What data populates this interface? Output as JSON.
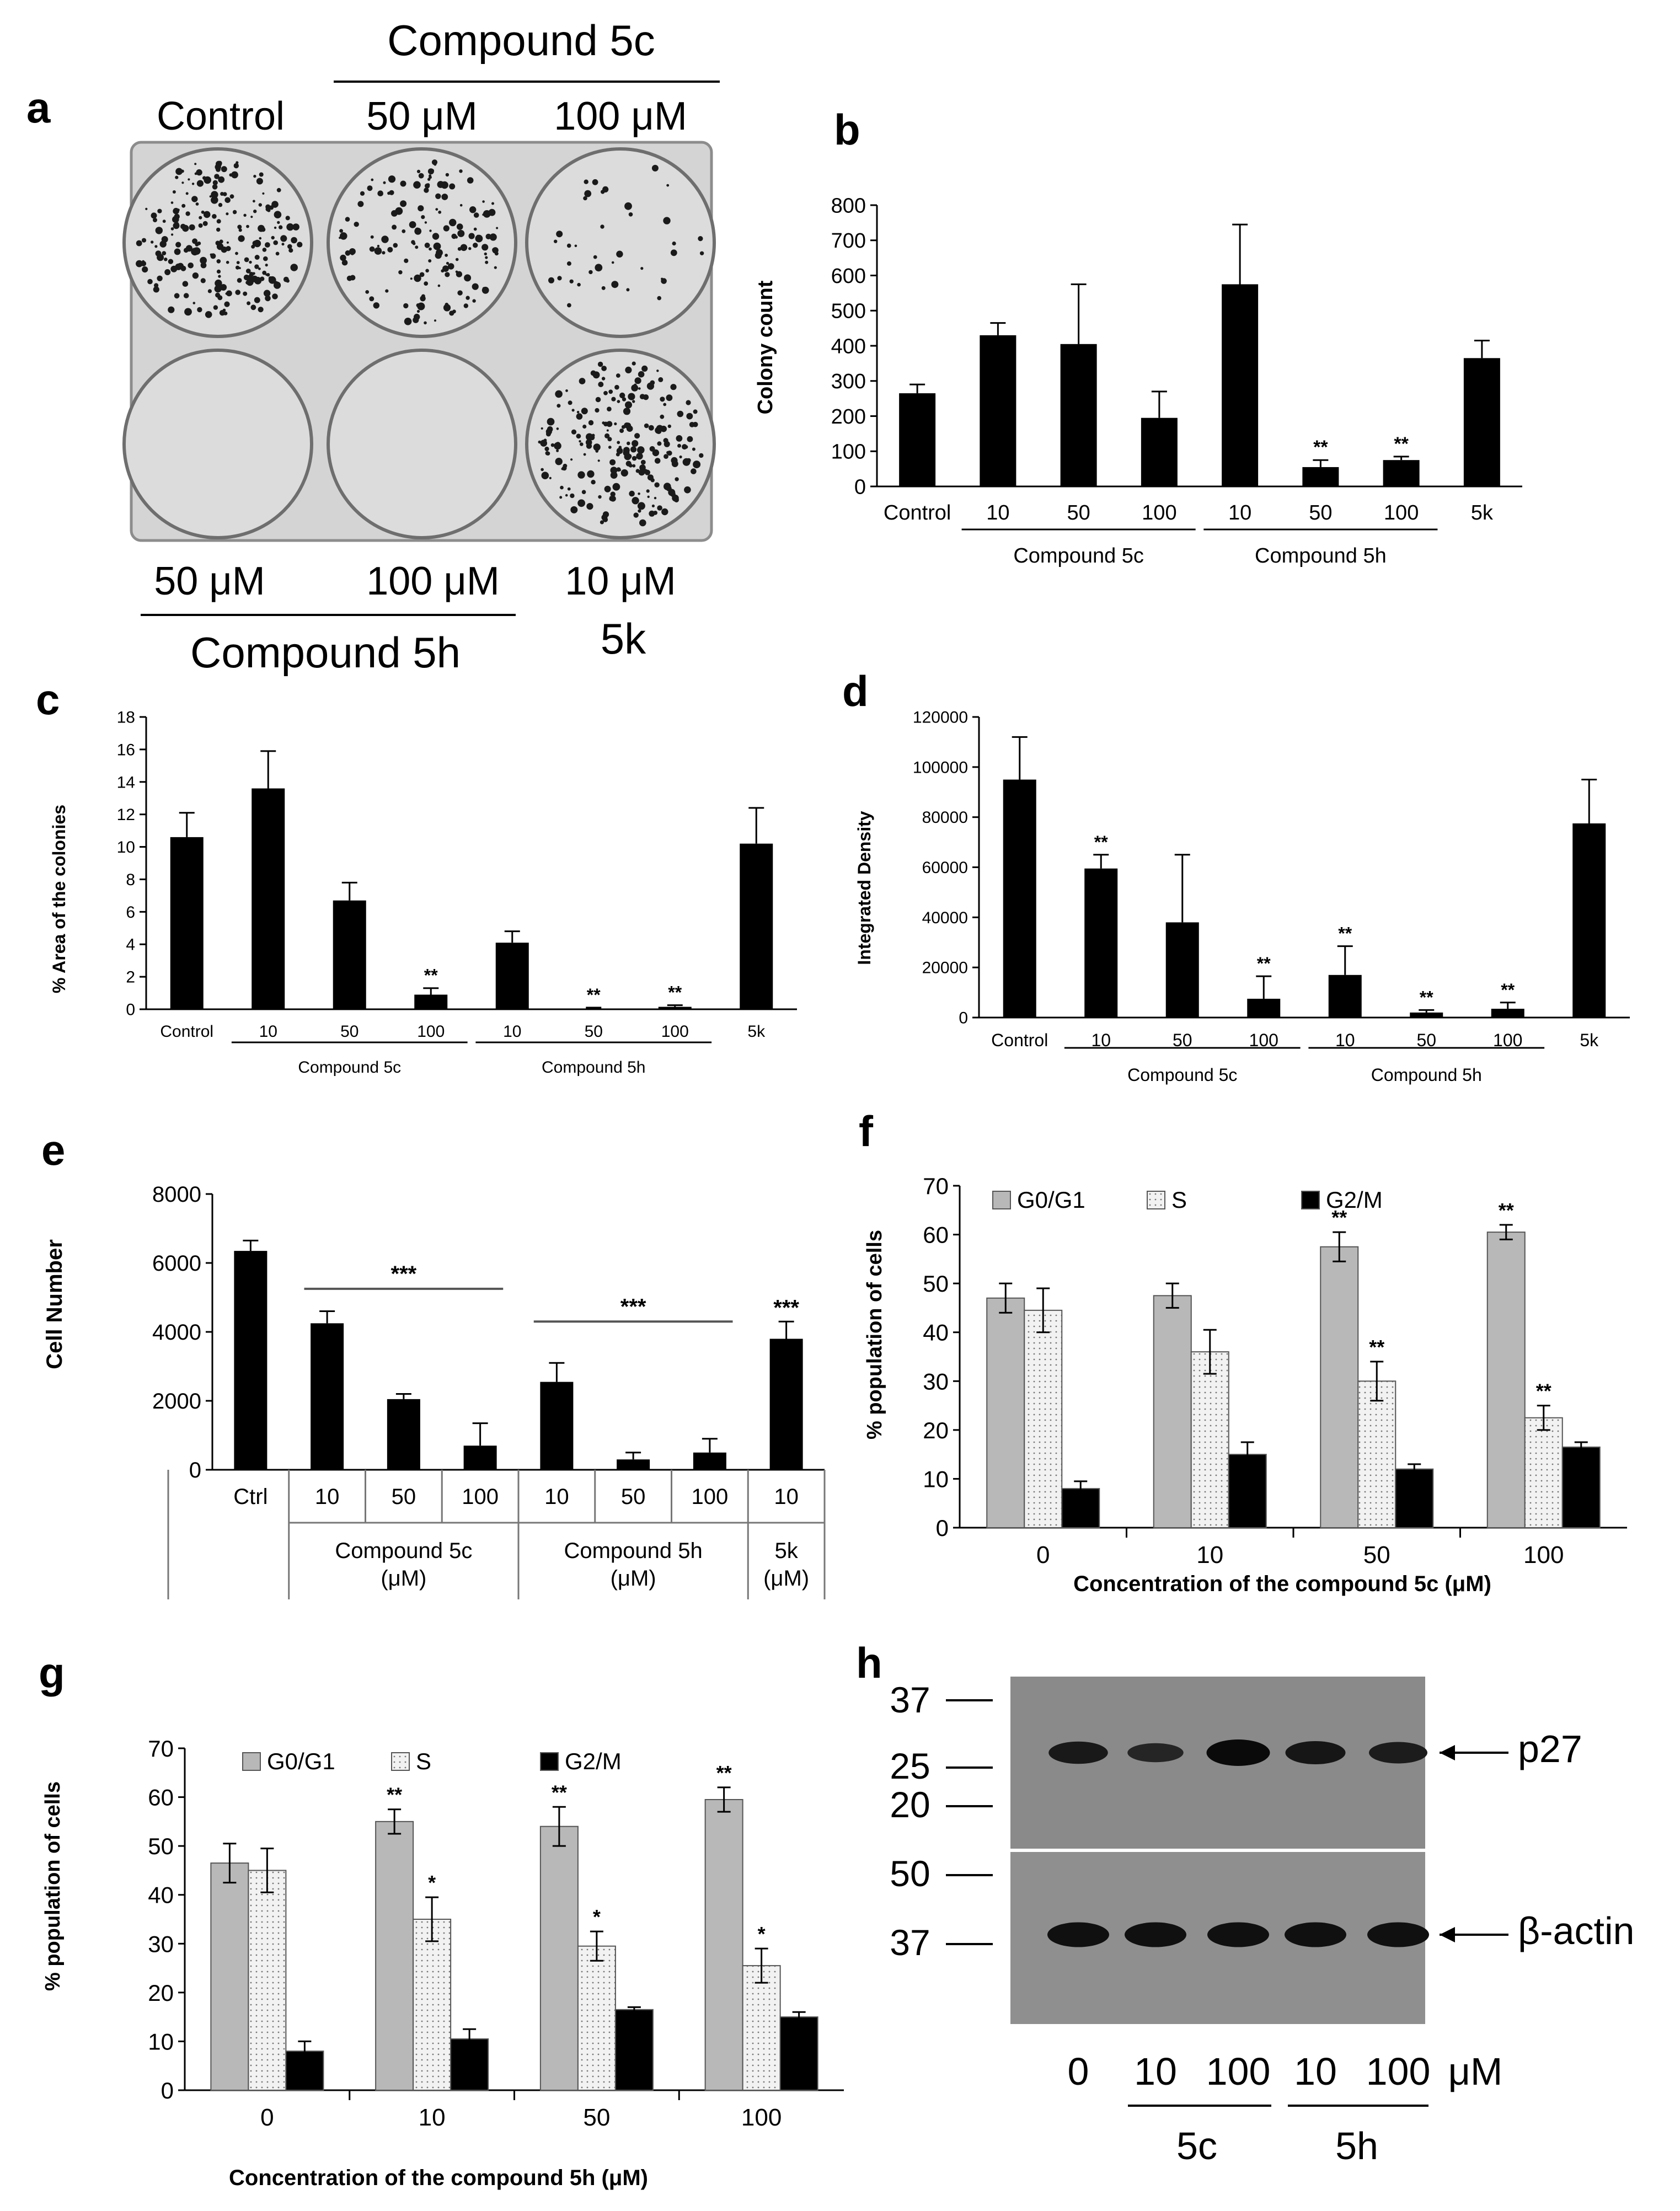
{
  "figure": {
    "panel_letters": {
      "a": "a",
      "b": "b",
      "c": "c",
      "d": "d",
      "e": "e",
      "f": "f",
      "g": "g",
      "h": "h"
    },
    "colors": {
      "black": "#000000",
      "gray": "#b8b8b8",
      "dotted": "#f2f2f2",
      "plate": "#c9c9c9",
      "blot": "#8a8a8a"
    }
  },
  "plate": {
    "header_compound": "Compound 5c",
    "labels_top": [
      "Control",
      "50 μM",
      "100 μM"
    ],
    "labels_bottom": [
      "50 μM",
      "100 μM",
      "10 μM"
    ],
    "footer_compound": "Compound 5h",
    "footer_5k": "5k",
    "colony_density": [
      0.9,
      0.6,
      0.15,
      0.0,
      0.0,
      0.85
    ]
  },
  "chart_data": [
    {
      "id": "b",
      "type": "bar",
      "categories": [
        "Control",
        "10",
        "50",
        "100",
        "10",
        "50",
        "100",
        "5k"
      ],
      "values": [
        265,
        430,
        405,
        195,
        575,
        55,
        75,
        365
      ],
      "errors": [
        25,
        35,
        170,
        75,
        170,
        20,
        10,
        50
      ],
      "significance": [
        "",
        "",
        "",
        "",
        "",
        "**",
        "**",
        ""
      ],
      "ylabel": "Colony count",
      "ylim": [
        0,
        800
      ],
      "yticks": [
        0,
        100,
        200,
        300,
        400,
        500,
        600,
        700,
        800
      ],
      "groups": [
        {
          "label": "Compound  5c",
          "start": 1,
          "end": 3
        },
        {
          "label": "Compound  5h",
          "start": 4,
          "end": 6
        }
      ]
    },
    {
      "id": "c",
      "type": "bar",
      "categories": [
        "Control",
        "10",
        "50",
        "100",
        "10",
        "50",
        "100",
        "5k"
      ],
      "values": [
        10.6,
        13.6,
        6.7,
        0.9,
        4.1,
        0.05,
        0.15,
        10.2
      ],
      "errors": [
        1.5,
        2.3,
        1.1,
        0.4,
        0.7,
        0.05,
        0.1,
        2.2
      ],
      "significance": [
        "",
        "",
        "",
        "**",
        "",
        "**",
        "**",
        ""
      ],
      "ylabel": "% Area of the colonies",
      "ylim": [
        0,
        18
      ],
      "yticks": [
        0,
        2,
        4,
        6,
        8,
        10,
        12,
        14,
        16,
        18
      ],
      "groups": [
        {
          "label": "Compound  5c",
          "start": 1,
          "end": 3
        },
        {
          "label": "Compound  5h",
          "start": 4,
          "end": 6
        }
      ]
    },
    {
      "id": "d",
      "type": "bar",
      "categories": [
        "Control",
        "10",
        "50",
        "100",
        "10",
        "50",
        "100",
        "5k"
      ],
      "values": [
        95000,
        59500,
        38000,
        7500,
        17000,
        2000,
        3500,
        77500
      ],
      "errors": [
        17000,
        5500,
        27000,
        9000,
        11500,
        1000,
        2500,
        17500
      ],
      "significance": [
        "",
        "**",
        "",
        "**",
        "**",
        "**",
        "**",
        ""
      ],
      "ylabel": "Integrated Density",
      "ylim": [
        0,
        120000
      ],
      "yticks": [
        0,
        20000,
        40000,
        60000,
        80000,
        100000,
        120000
      ],
      "groups": [
        {
          "label": "Compound  5c",
          "start": 1,
          "end": 3
        },
        {
          "label": "Compound  5h",
          "start": 4,
          "end": 6
        }
      ]
    },
    {
      "id": "e",
      "type": "bar",
      "categories": [
        "Ctrl",
        "10",
        "50",
        "100",
        "10",
        "50",
        "100",
        "10"
      ],
      "values": [
        6350,
        4250,
        2050,
        700,
        2550,
        300,
        500,
        3800
      ],
      "errors": [
        300,
        350,
        150,
        650,
        550,
        200,
        400,
        500
      ],
      "significance": [
        "",
        "",
        "",
        "",
        "",
        "",
        "",
        "***"
      ],
      "ylabel": "Cell Number",
      "ylim": [
        0,
        8000
      ],
      "yticks": [
        0,
        2000,
        4000,
        6000,
        8000
      ],
      "brackets": [
        {
          "label": "***",
          "start": 1,
          "end": 3,
          "value": 5250
        },
        {
          "label": "***",
          "start": 4,
          "end": 6,
          "value": 4300
        }
      ],
      "groups": [
        {
          "label": "Compound  5c",
          "sublabel": "(μM)",
          "start": 1,
          "end": 3
        },
        {
          "label": "Compound  5h",
          "sublabel": "(μM)",
          "start": 4,
          "end": 6
        },
        {
          "label": "5k",
          "sublabel": "(μM)",
          "start": 7,
          "end": 7
        }
      ]
    },
    {
      "id": "f",
      "type": "bar",
      "categories": [
        "0",
        "10",
        "50",
        "100"
      ],
      "series": [
        {
          "name": "G0/G1",
          "values": [
            47,
            47.5,
            57.5,
            60.5
          ],
          "errors": [
            3,
            2.5,
            3,
            1.5
          ],
          "significance": [
            "",
            "",
            "**",
            "**"
          ]
        },
        {
          "name": "S",
          "values": [
            44.5,
            36,
            30,
            22.5
          ],
          "errors": [
            4.5,
            4.5,
            4,
            2.5
          ],
          "significance": [
            "",
            "",
            "**",
            "**"
          ]
        },
        {
          "name": "G2/M",
          "values": [
            8,
            15,
            12,
            16.5
          ],
          "errors": [
            1.5,
            2.5,
            1,
            1
          ],
          "significance": [
            "",
            "",
            "",
            ""
          ]
        }
      ],
      "xlabel": "Concentration of the compound 5c (μM)",
      "ylabel": "% population of cells",
      "ylim": [
        0,
        70
      ],
      "yticks": [
        0,
        10,
        20,
        30,
        40,
        50,
        60,
        70
      ],
      "legend": "top-left"
    },
    {
      "id": "g",
      "type": "bar",
      "categories": [
        "0",
        "10",
        "50",
        "100"
      ],
      "series": [
        {
          "name": "G0/G1",
          "values": [
            46.5,
            55,
            54,
            59.5
          ],
          "errors": [
            4,
            2.5,
            4,
            2.5
          ],
          "significance": [
            "",
            "**",
            "**",
            "**"
          ]
        },
        {
          "name": "S",
          "values": [
            45,
            35,
            29.5,
            25.5
          ],
          "errors": [
            4.5,
            4.5,
            3,
            3.5
          ],
          "significance": [
            "",
            "*",
            "*",
            "*"
          ]
        },
        {
          "name": "G2/M",
          "values": [
            8,
            10.5,
            16.5,
            15
          ],
          "errors": [
            2,
            2,
            0.5,
            1
          ],
          "significance": [
            "",
            "",
            "",
            ""
          ]
        }
      ],
      "xlabel": "Concentration of the compound 5h (μM)",
      "ylabel": "% population of cells",
      "ylim": [
        0,
        70
      ],
      "yticks": [
        0,
        10,
        20,
        30,
        40,
        50,
        60,
        70
      ],
      "legend": "top-left"
    }
  ],
  "blot": {
    "top_markers": [
      "37",
      "25",
      "20"
    ],
    "bottom_markers": [
      "50",
      "37"
    ],
    "bands": [
      {
        "label": "p27",
        "intensities": [
          0.75,
          0.55,
          1.0,
          0.8,
          0.7
        ]
      },
      {
        "label": "β-actin",
        "intensities": [
          0.9,
          0.9,
          0.9,
          0.9,
          0.9
        ]
      }
    ],
    "lanes": [
      "0",
      "10",
      "100",
      "10",
      "100"
    ],
    "unit": "μM",
    "groups": [
      {
        "label": "5c",
        "start": 1,
        "end": 2
      },
      {
        "label": "5h",
        "start": 3,
        "end": 4
      }
    ]
  }
}
